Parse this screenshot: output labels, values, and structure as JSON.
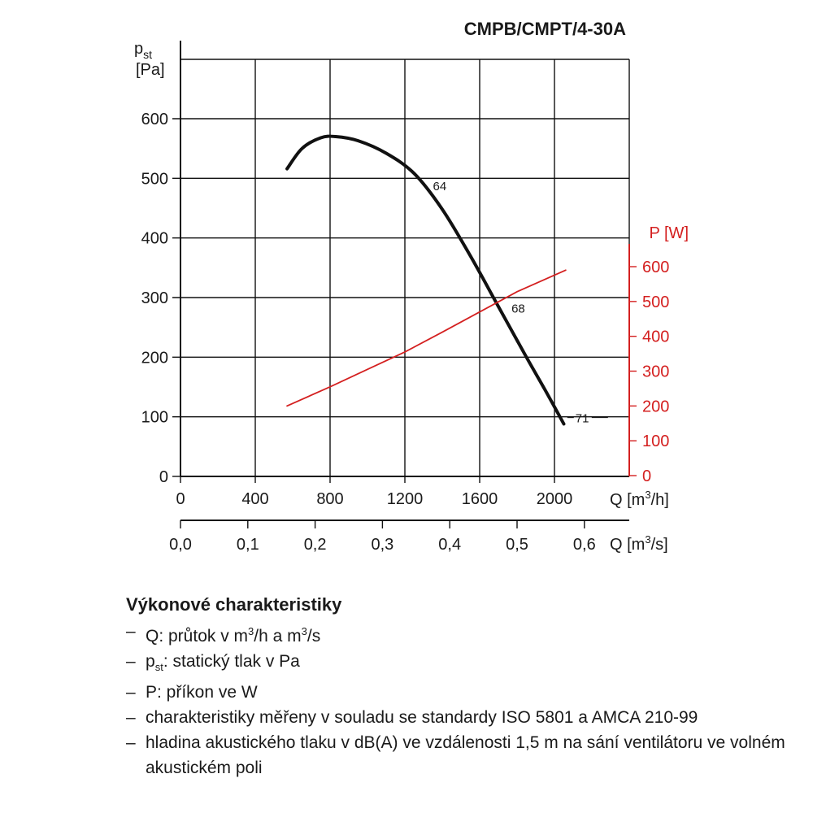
{
  "chart_data": {
    "title": "CMPB/CMPT/4-30A",
    "type": "line",
    "y_left": {
      "label_main": "p",
      "label_sub": "st",
      "unit": "[Pa]",
      "ylim": [
        0,
        600
      ],
      "ticks": [
        0,
        100,
        200,
        300,
        400,
        500,
        600
      ]
    },
    "y_right": {
      "label": "P [W]",
      "ylim": [
        0,
        600
      ],
      "ticks": [
        0,
        100,
        200,
        300,
        400,
        500,
        600
      ]
    },
    "x_primary": {
      "label_prefix": "Q [m",
      "label_sup": "3",
      "label_suffix": "/h]",
      "xlim": [
        0,
        2400
      ],
      "ticks": [
        0,
        400,
        800,
        1200,
        1600,
        2000
      ]
    },
    "x_secondary": {
      "label_prefix": "Q [m",
      "label_sup": "3",
      "label_suffix": "/s]",
      "ticks": [
        "0,0",
        "0,1",
        "0,2",
        "0,3",
        "0,4",
        "0,5",
        "0,6"
      ],
      "tick_values": [
        0,
        0.1,
        0.2,
        0.3,
        0.4,
        0.5,
        0.6
      ]
    },
    "grid": true,
    "series": [
      {
        "axis": "left",
        "color": "#111111",
        "x": [
          570,
          650,
          750,
          830,
          950,
          1100,
          1250,
          1400,
          1550,
          1700,
          1850,
          1950,
          2050
        ],
        "y": [
          516,
          550,
          568,
          570,
          563,
          542,
          508,
          448,
          370,
          285,
          200,
          145,
          88
        ]
      },
      {
        "axis": "right",
        "color": "#d42020",
        "x": [
          570,
          800,
          1000,
          1200,
          1400,
          1600,
          1800,
          2060
        ],
        "y": [
          200,
          255,
          305,
          355,
          412,
          470,
          528,
          590
        ]
      }
    ],
    "annotations": [
      {
        "text": "64",
        "x": 1350,
        "y": 480
      },
      {
        "text": "68",
        "x": 1770,
        "y": 275
      },
      {
        "text": "71",
        "x": 2060,
        "y": 100
      }
    ]
  },
  "legend": {
    "title": "Výkonové charakteristiky",
    "items": [
      {
        "dash": "–",
        "parts": [
          {
            "t": "Q: průtok v m"
          },
          {
            "t": "3",
            "sup": true
          },
          {
            "t": "/h a m"
          },
          {
            "t": "3",
            "sup": true
          },
          {
            "t": "/s"
          }
        ]
      },
      {
        "dash": "–",
        "parts": [
          {
            "t": "p"
          },
          {
            "t": "st",
            "sub": true
          },
          {
            "t": ": statický tlak v Pa"
          }
        ]
      },
      {
        "dash": "–",
        "parts": [
          {
            "t": "P: příkon ve W"
          }
        ]
      },
      {
        "dash": "–",
        "parts": [
          {
            "t": "charakteristiky měřeny v souladu se standardy ISO 5801 a AMCA 210-99"
          }
        ]
      },
      {
        "dash": "–",
        "parts": [
          {
            "t": "hladina akustického tlaku v dB(A) ve vzdálenosti 1,5 m na sání ventilátoru ve volném akustickém poli"
          }
        ]
      }
    ]
  }
}
